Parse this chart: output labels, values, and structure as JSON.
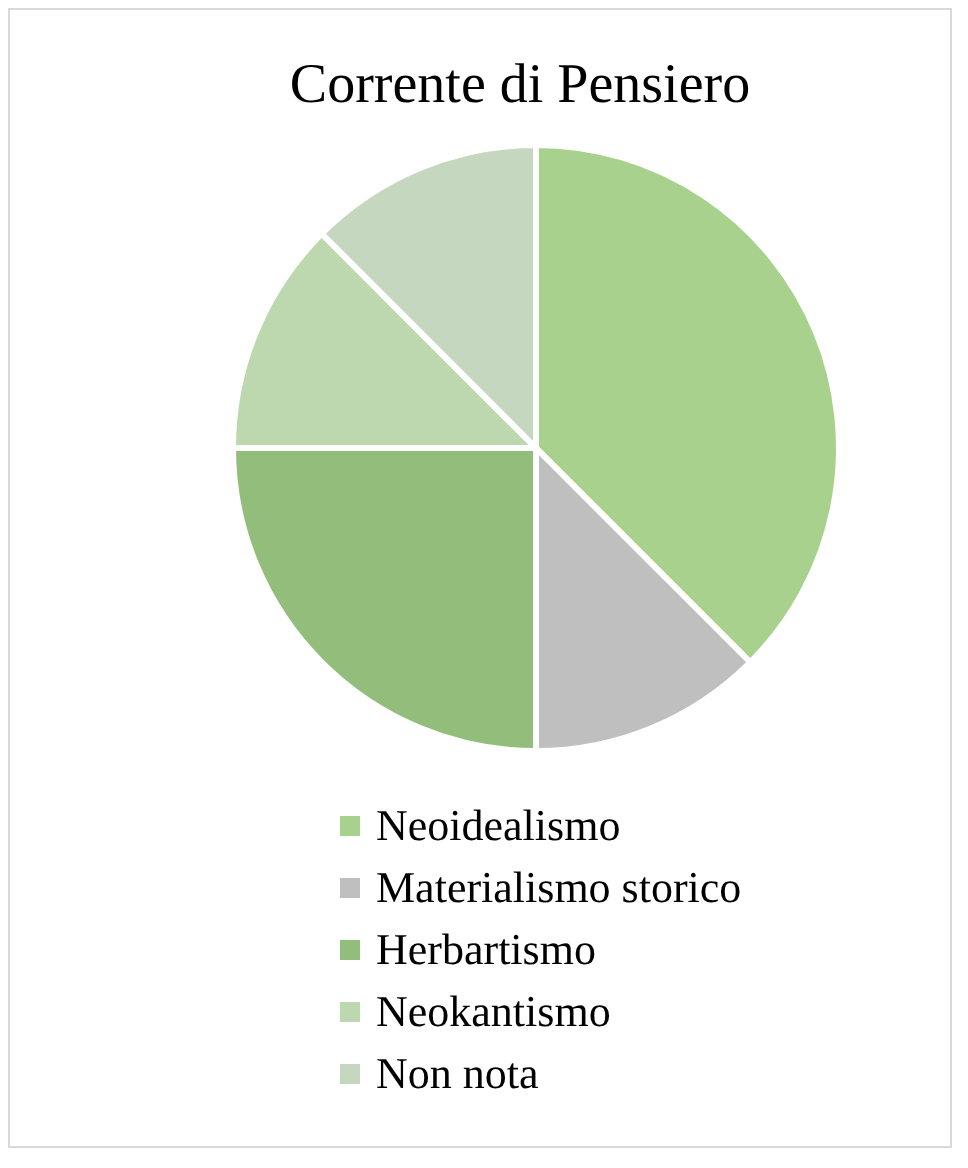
{
  "chart_data": {
    "type": "pie",
    "title": "Corrente di Pensiero",
    "categories": [
      "Neoidealismo",
      "Materialismo storico",
      "Herbartismo",
      "Neokantismo",
      "Non nota"
    ],
    "values": [
      37.5,
      12.5,
      25,
      12.5,
      12.5
    ],
    "colors": [
      "#a9d18e",
      "#bfbfbf",
      "#93bd7a",
      "#bdd7ae",
      "#c5d8bf"
    ],
    "legend": "bottom"
  }
}
